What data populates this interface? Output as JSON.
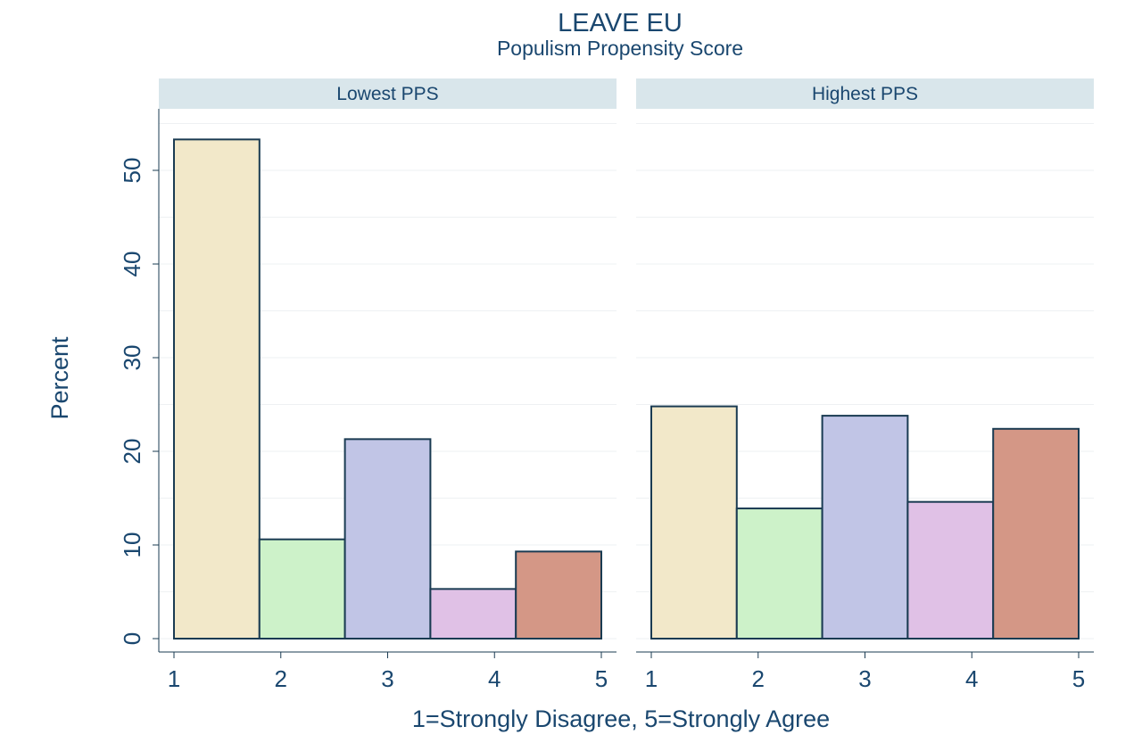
{
  "chart_data": {
    "type": "bar",
    "title": "LEAVE EU",
    "subtitle": "Populism Propensity Score",
    "xlabel": "1=Strongly Disagree, 5=Strongly Agree",
    "ylabel": "Percent",
    "x_ticks": [
      "1",
      "2",
      "3",
      "4",
      "5"
    ],
    "y_ticks": [
      0,
      10,
      20,
      30,
      40,
      50
    ],
    "ylim": [
      0,
      55
    ],
    "xlim": [
      1,
      5
    ],
    "grid": true,
    "categories": [
      1,
      2,
      3,
      4,
      5
    ],
    "bar_colors": [
      "#f2e8c9",
      "#cdf2c9",
      "#c1c5e6",
      "#e0c1e6",
      "#d49786"
    ],
    "bar_edge_color": "#1a3b52",
    "panels": [
      {
        "name": "Lowest PPS",
        "values": [
          53.3,
          10.6,
          21.3,
          5.3,
          9.3
        ]
      },
      {
        "name": "Highest PPS",
        "values": [
          24.8,
          13.9,
          23.8,
          14.6,
          22.4
        ]
      }
    ]
  }
}
